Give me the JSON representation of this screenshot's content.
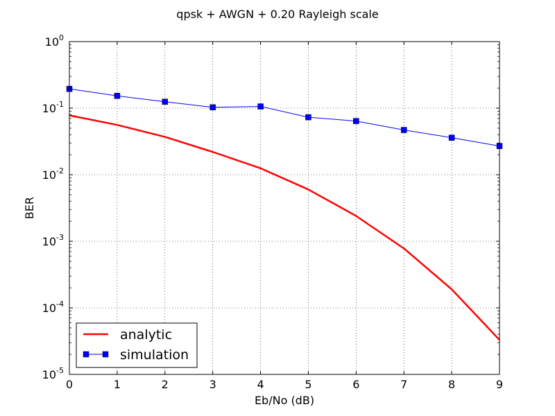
{
  "chart_data": {
    "type": "line",
    "title": "qpsk + AWGN + 0.20 Rayleigh scale",
    "xlabel": "Eb/No (dB)",
    "ylabel": "BER",
    "xlim": [
      0,
      9
    ],
    "ylim": [
      1e-05,
      1
    ],
    "yscale": "log",
    "grid": true,
    "legend_position": "lower-left",
    "x": [
      0,
      1,
      2,
      3,
      4,
      5,
      6,
      7,
      8,
      9
    ],
    "x_ticks": [
      "0",
      "1",
      "2",
      "3",
      "4",
      "5",
      "6",
      "7",
      "8",
      "9"
    ],
    "y_ticks": [
      {
        "value": 1,
        "base": "10",
        "exp": "0"
      },
      {
        "value": 0.1,
        "base": "10",
        "exp": "-1"
      },
      {
        "value": 0.01,
        "base": "10",
        "exp": "-2"
      },
      {
        "value": 0.001,
        "base": "10",
        "exp": "-3"
      },
      {
        "value": 0.0001,
        "base": "10",
        "exp": "-4"
      },
      {
        "value": 1e-05,
        "base": "10",
        "exp": "-5"
      }
    ],
    "series": [
      {
        "name": "analytic",
        "color": "#ff0000",
        "marker": "none",
        "values": [
          0.078,
          0.056,
          0.037,
          0.022,
          0.0125,
          0.006,
          0.0024,
          0.00078,
          0.00019,
          3.3e-05
        ]
      },
      {
        "name": "simulation",
        "color": "#0000ff",
        "marker": "square",
        "values": [
          0.195,
          0.153,
          0.125,
          0.103,
          0.106,
          0.073,
          0.064,
          0.047,
          0.036,
          0.027
        ]
      }
    ]
  }
}
